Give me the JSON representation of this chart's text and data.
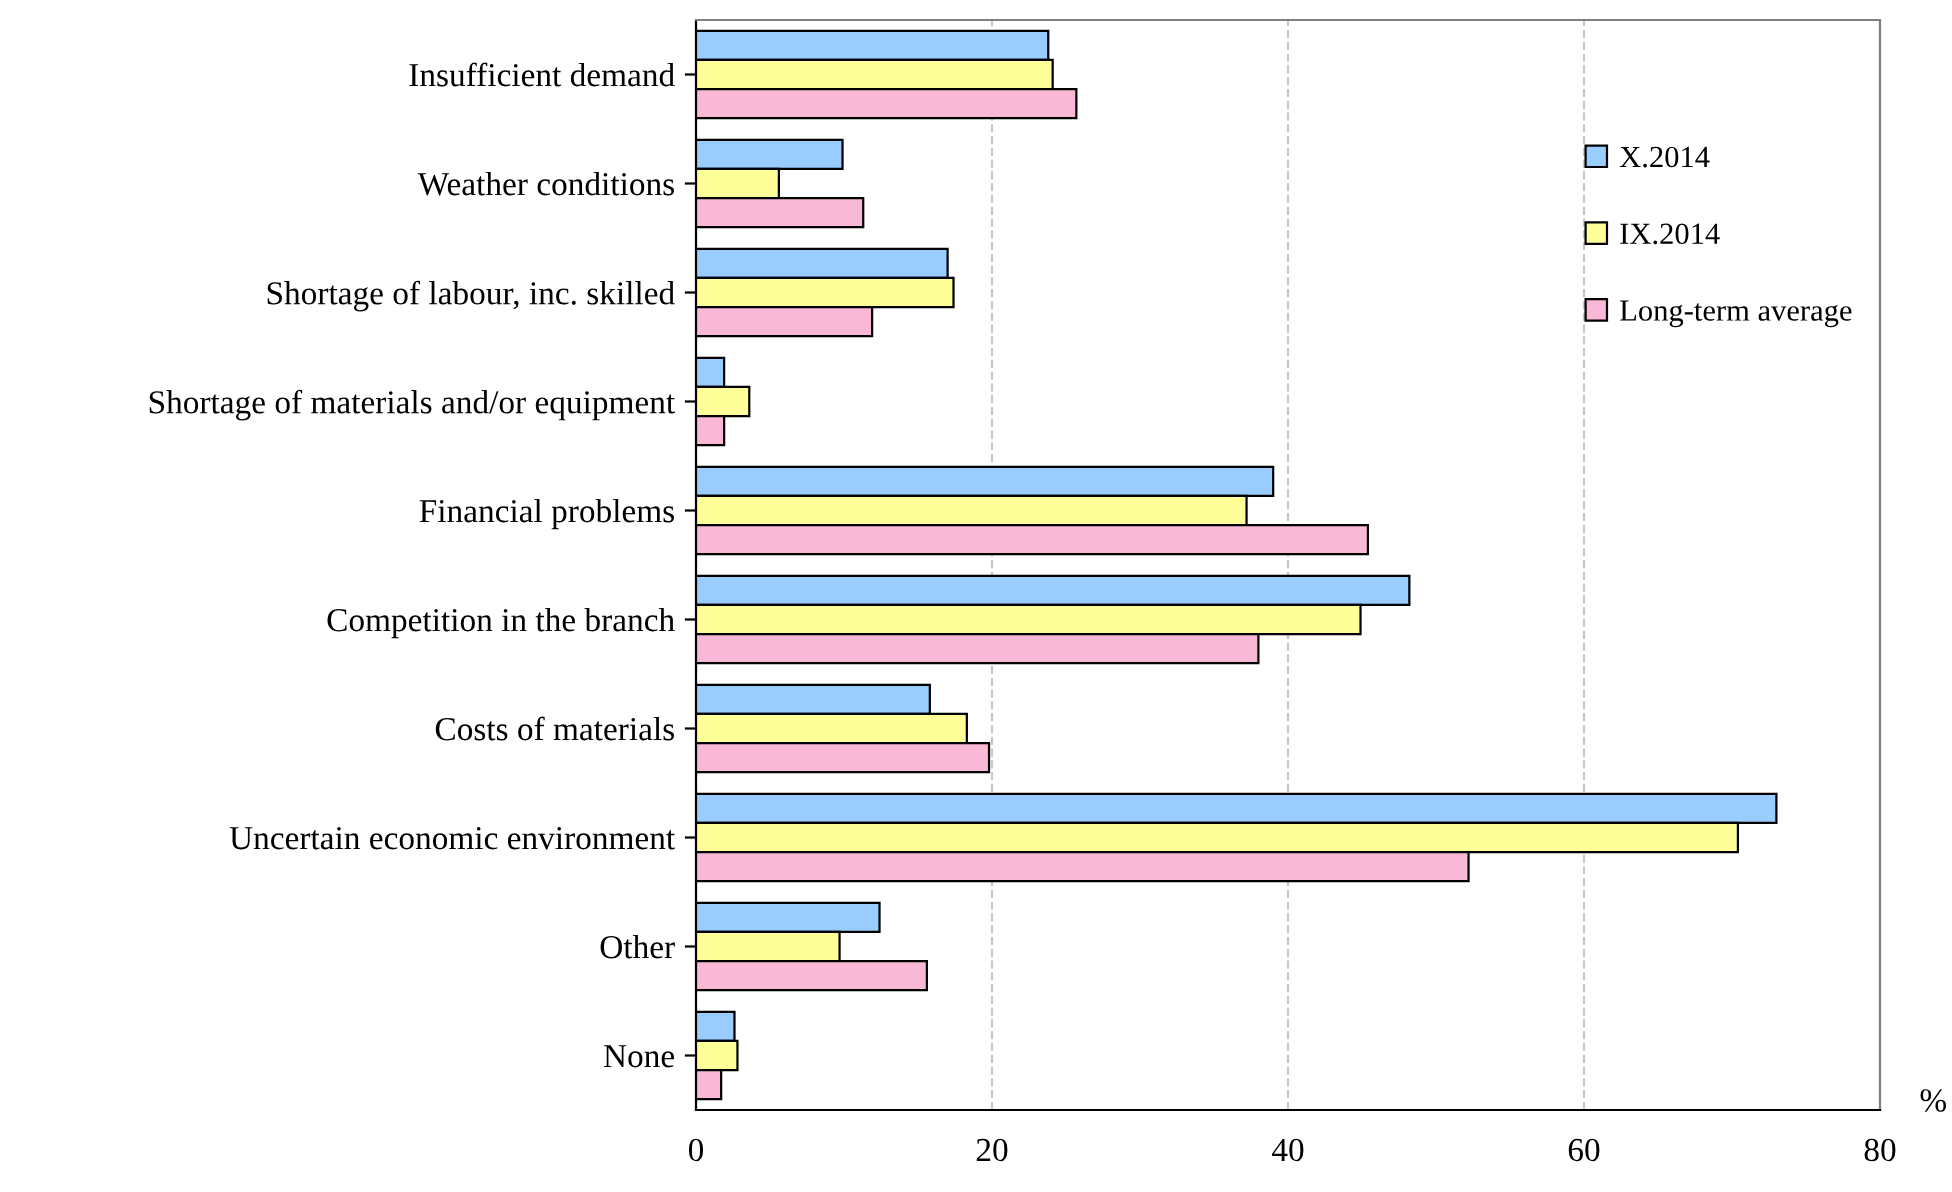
{
  "chart_data": {
    "type": "bar",
    "orientation": "horizontal",
    "xlabel": "%",
    "categories": [
      "Insufficient demand",
      "Weather conditions",
      "Shortage of labour, inc. skilled",
      "Shortage of materials and/or equipment",
      "Financial problems",
      "Competition in the branch",
      "Costs of materials",
      "Uncertain economic environment",
      "Other",
      "None"
    ],
    "series": [
      {
        "name": "X.2014",
        "color": "#99ccff",
        "values": [
          23.8,
          9.9,
          17.0,
          1.9,
          39.0,
          48.2,
          15.8,
          73.0,
          12.4,
          2.6
        ]
      },
      {
        "name": "IX.2014",
        "color": "#ffff99",
        "values": [
          24.1,
          5.6,
          17.4,
          3.6,
          37.2,
          44.9,
          18.3,
          70.4,
          9.7,
          2.8
        ]
      },
      {
        "name": "Long-term average",
        "color": "#f9b8d6",
        "values": [
          25.7,
          11.3,
          11.9,
          1.9,
          45.4,
          38.0,
          19.8,
          52.2,
          15.6,
          1.7
        ]
      }
    ],
    "xlim": [
      0,
      80
    ],
    "xticks": [
      0,
      20,
      40,
      60,
      80
    ],
    "grid": "x",
    "legend": "top right"
  }
}
